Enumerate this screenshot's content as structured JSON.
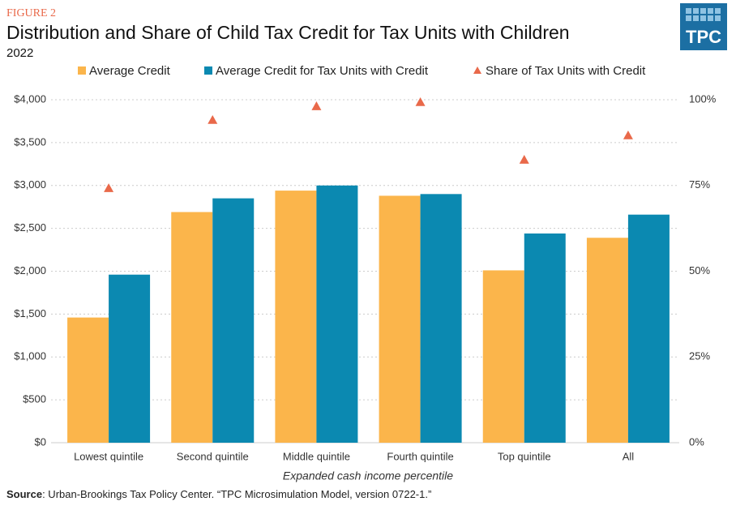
{
  "chart_data": {
    "type": "bar",
    "figure_label": "FIGURE 2",
    "title": "Distribution and Share of Child Tax Credit for Tax Units with Children",
    "subtitle": "2022",
    "logo": "TPC",
    "x_label": "Expanded cash income percentile",
    "source_label": "Source",
    "source_text": ": Urban-Brookings Tax Policy Center. “TPC Microsimulation Model, version 0722-1.”",
    "categories": [
      "Lowest quintile",
      "Second quintile",
      "Middle quintile",
      "Fourth quintile",
      "Top quintile",
      "All"
    ],
    "series": [
      {
        "name": "Average Credit",
        "type": "bar",
        "color": "#fbb54b",
        "values": [
          1460,
          2690,
          2940,
          2880,
          2010,
          2390
        ]
      },
      {
        "name": "Average Credit for Tax Units with Credit",
        "type": "bar",
        "color": "#0b89b1",
        "values": [
          1960,
          2850,
          3000,
          2900,
          2440,
          2660
        ]
      },
      {
        "name": "Share of Tax Units with Credit",
        "type": "scatter",
        "axis": "y2",
        "color": "#e9694a",
        "values": [
          74.2,
          94.1,
          98.1,
          99.3,
          82.5,
          89.6
        ]
      }
    ],
    "ylim": [
      0,
      4000
    ],
    "yticks": [
      {
        "value": 0,
        "label": "$0"
      },
      {
        "value": 500,
        "label": "$500"
      },
      {
        "value": 1000,
        "label": "$1,000"
      },
      {
        "value": 1500,
        "label": "$1,500"
      },
      {
        "value": 2000,
        "label": "$2,000"
      },
      {
        "value": 2500,
        "label": "$2,500"
      },
      {
        "value": 3000,
        "label": "$3,000"
      },
      {
        "value": 3500,
        "label": "$3,500"
      },
      {
        "value": 4000,
        "label": "$4,000"
      }
    ],
    "y2lim": [
      0,
      100
    ],
    "y2ticks": [
      {
        "value": 0,
        "label": "0%"
      },
      {
        "value": 25,
        "label": "25%"
      },
      {
        "value": 50,
        "label": "50%"
      },
      {
        "value": 75,
        "label": "75%"
      },
      {
        "value": 100,
        "label": "100%"
      }
    ],
    "grid": true
  }
}
